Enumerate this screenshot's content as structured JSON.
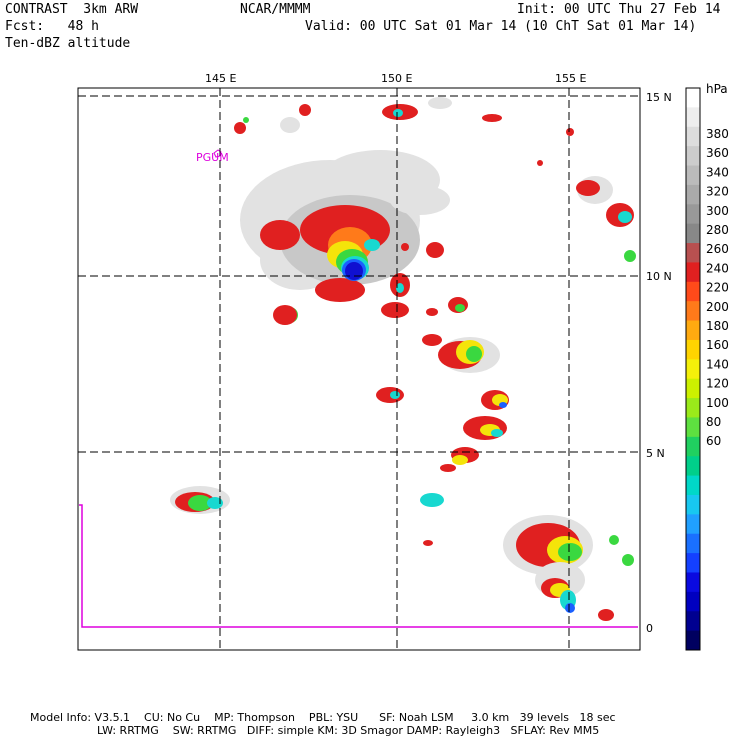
{
  "header": {
    "model": "CONTRAST  3km ARW",
    "forecast": "Fcst:   48 h",
    "field": "Ten-dBZ altitude",
    "org": "NCAR/MMMM",
    "init": "Init: 00 UTC Thu 27 Feb 14",
    "valid": "Valid: 00 UTC Sat 01 Mar 14 (10 ChT Sat 01 Mar 14)"
  },
  "map": {
    "lon_labels": [
      "145 E",
      "150 E",
      "155 E"
    ],
    "lat_labels": [
      "15 N",
      "10 N",
      "5 N",
      "0"
    ],
    "station_label": "PGUM",
    "colors": {
      "grid": "#000000",
      "coast": "#dd00dd",
      "frame": "#000000"
    }
  },
  "colorbar": {
    "unit": "hPa",
    "labels": [
      "380",
      "360",
      "340",
      "320",
      "300",
      "280",
      "260",
      "240",
      "220",
      "200",
      "180",
      "160",
      "140",
      "120",
      "100",
      "80",
      "60"
    ],
    "colors": [
      "#ffffff",
      "#eeeeee",
      "#dddddd",
      "#cccccc",
      "#bbbbbb",
      "#aaaaaa",
      "#999999",
      "#888888",
      "#b85050",
      "#e02020",
      "#ff4a1a",
      "#ff7a1a",
      "#ffaa10",
      "#ffd400",
      "#f4f00a",
      "#ccf000",
      "#9aea1a",
      "#5ee040",
      "#20d060",
      "#00cf8a",
      "#00d8c8",
      "#18c8f0",
      "#20a0ff",
      "#1a70ff",
      "#1440ff",
      "#0a0ae0",
      "#0000c0",
      "#000090",
      "#000060"
    ]
  },
  "footer": {
    "line1": "Model Info: V3.5.1    CU: No Cu    MP: Thompson    PBL: YSU      SF: Noah LSM     3.0 km   39 levels   18 sec",
    "line2": "LW: RRTMG    SW: RRTMG   DIFF: simple KM: 3D Smagor DAMP: Rayleigh3   SFLAY: Rev MM5"
  }
}
